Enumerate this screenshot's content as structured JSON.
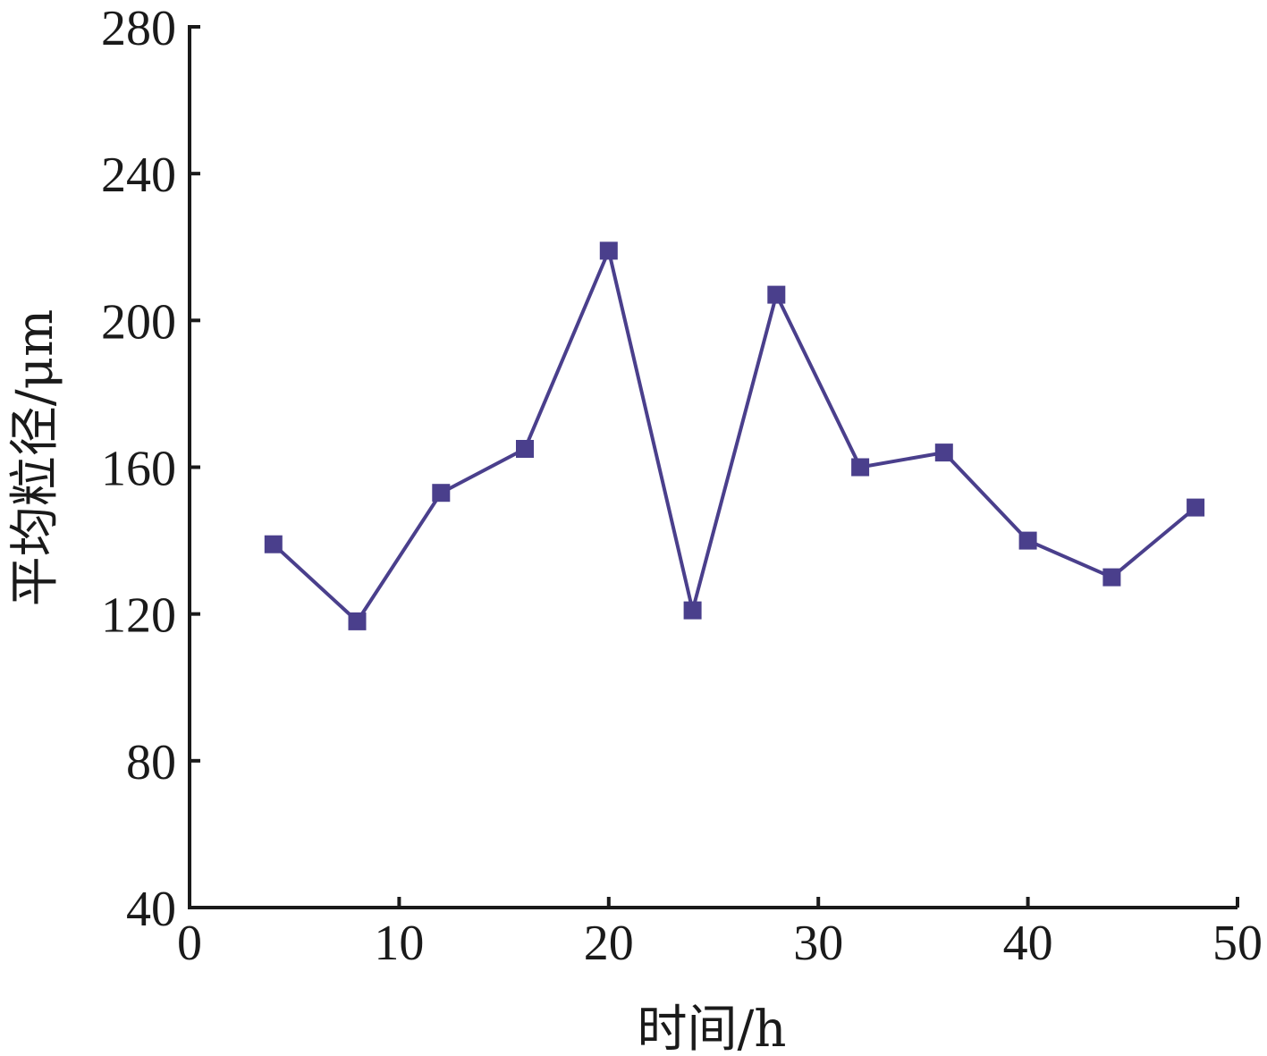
{
  "chart_data": {
    "type": "line",
    "title": "",
    "xlabel": "时间/h",
    "ylabel": "平均粒径/μm",
    "xlim": [
      0,
      50
    ],
    "ylim": [
      40,
      280
    ],
    "x_ticks": [
      0,
      10,
      20,
      30,
      40,
      50
    ],
    "y_ticks": [
      40,
      80,
      120,
      160,
      200,
      240,
      280
    ],
    "grid": false,
    "legend": "none",
    "series": [
      {
        "color": "#4a3f8c",
        "marker": "square",
        "x": [
          4,
          8,
          12,
          16,
          20,
          24,
          28,
          32,
          36,
          40,
          44,
          48
        ],
        "y": [
          139,
          118,
          153,
          165,
          219,
          121,
          207,
          160,
          164,
          140,
          130,
          149
        ]
      }
    ]
  }
}
